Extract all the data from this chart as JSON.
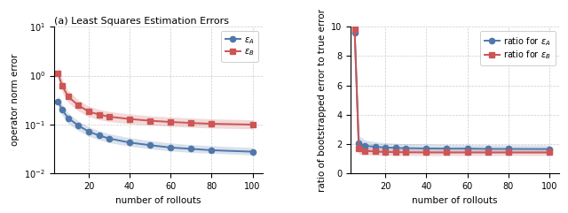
{
  "title_left": "(a) Least Squares Estimation Errors",
  "rollouts": [
    5,
    7,
    10,
    15,
    20,
    25,
    30,
    40,
    50,
    60,
    70,
    80,
    100
  ],
  "eps_A_mean": [
    0.3,
    0.2,
    0.135,
    0.095,
    0.072,
    0.06,
    0.052,
    0.043,
    0.038,
    0.034,
    0.032,
    0.03,
    0.028
  ],
  "eps_A_low": [
    0.22,
    0.155,
    0.105,
    0.075,
    0.058,
    0.049,
    0.043,
    0.036,
    0.032,
    0.029,
    0.027,
    0.026,
    0.024
  ],
  "eps_A_high": [
    0.4,
    0.26,
    0.172,
    0.118,
    0.09,
    0.075,
    0.065,
    0.054,
    0.047,
    0.042,
    0.039,
    0.037,
    0.034
  ],
  "eps_B_mean": [
    1.1,
    0.62,
    0.37,
    0.245,
    0.185,
    0.16,
    0.145,
    0.13,
    0.12,
    0.113,
    0.108,
    0.104,
    0.1
  ],
  "eps_B_low": [
    0.8,
    0.46,
    0.28,
    0.188,
    0.144,
    0.126,
    0.115,
    0.104,
    0.097,
    0.092,
    0.088,
    0.085,
    0.082
  ],
  "eps_B_high": [
    1.5,
    0.83,
    0.49,
    0.318,
    0.238,
    0.205,
    0.185,
    0.165,
    0.151,
    0.143,
    0.136,
    0.131,
    0.125
  ],
  "ratio_A_mean": [
    9.6,
    2.05,
    1.9,
    1.82,
    1.78,
    1.75,
    1.73,
    1.71,
    1.7,
    1.7,
    1.68,
    1.68,
    1.67
  ],
  "ratio_A_low": [
    8.5,
    1.5,
    1.52,
    1.48,
    1.45,
    1.43,
    1.42,
    1.41,
    1.4,
    1.4,
    1.39,
    1.39,
    1.38
  ],
  "ratio_A_high": [
    9.95,
    2.6,
    2.28,
    2.16,
    2.1,
    2.06,
    2.03,
    2.01,
    1.99,
    1.98,
    1.96,
    1.96,
    1.95
  ],
  "ratio_B_mean": [
    9.8,
    1.68,
    1.55,
    1.5,
    1.47,
    1.46,
    1.45,
    1.44,
    1.44,
    1.44,
    1.44,
    1.44,
    1.44
  ],
  "ratio_B_low": [
    9.3,
    1.32,
    1.28,
    1.25,
    1.24,
    1.23,
    1.22,
    1.22,
    1.22,
    1.22,
    1.22,
    1.22,
    1.22
  ],
  "ratio_B_high": [
    9.98,
    2.04,
    1.82,
    1.75,
    1.7,
    1.68,
    1.67,
    1.66,
    1.65,
    1.65,
    1.65,
    1.65,
    1.65
  ],
  "color_A": "#5077aa",
  "color_B": "#cc5555",
  "alpha_fill": 0.22,
  "lw": 1.4,
  "markersize": 4.5,
  "left_ylabel": "operator norm error",
  "left_xlabel": "number of rollouts",
  "right_ylabel": "ratio of bootstrapped error to true error",
  "right_xlabel": "number of rollouts",
  "left_ylim": [
    0.01,
    10
  ],
  "right_ylim": [
    0,
    10
  ],
  "right_yticks": [
    0,
    2,
    4,
    6,
    8,
    10
  ],
  "xlim": [
    3,
    105
  ],
  "xticks": [
    20,
    40,
    60,
    80,
    100
  ],
  "grid_color": "#cccccc",
  "grid_ls": "--",
  "grid_lw": 0.5,
  "label_fontsize": 7.5,
  "tick_fontsize": 7,
  "title_fontsize": 8,
  "legend_fontsize": 7
}
